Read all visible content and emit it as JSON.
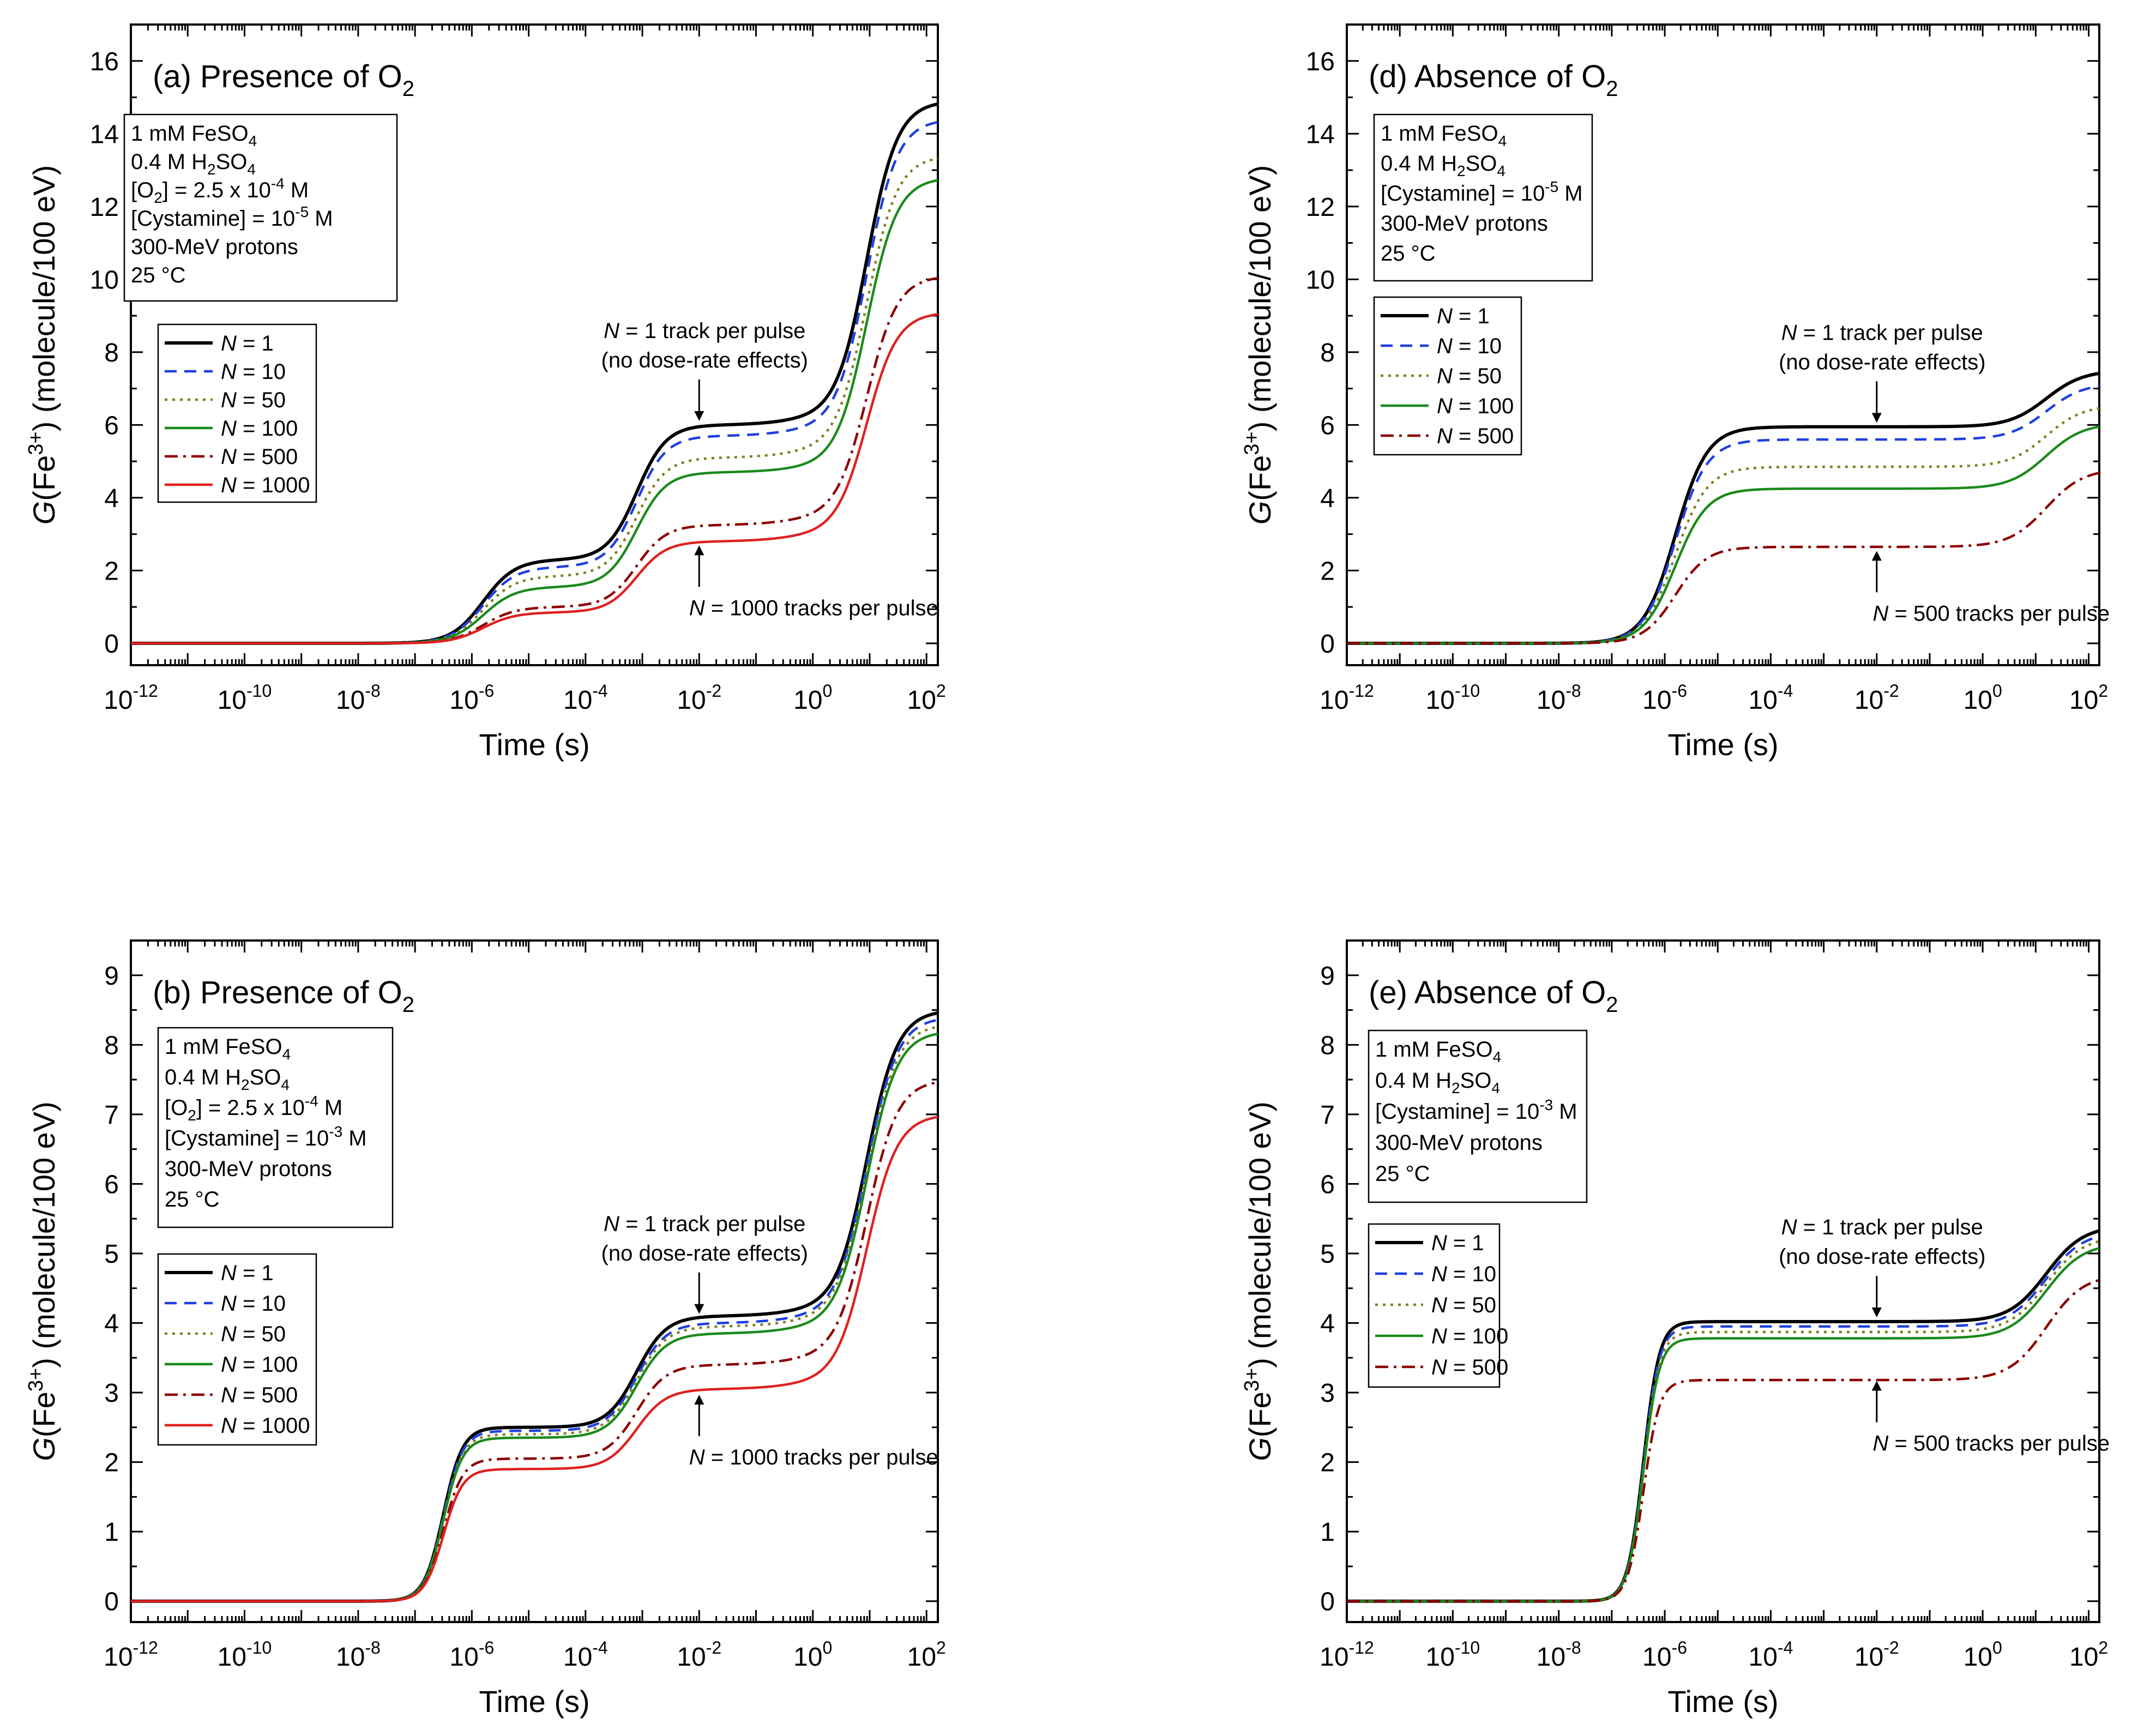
{
  "chart_data": [
    {
      "id": "a",
      "type": "line",
      "title": "(a) Presence of O",
      "title_sub": "2",
      "xlabel": "Time (s)",
      "ylabel": {
        "prefix": "G",
        "mid": "(Fe",
        "sup": "3+",
        "suffix": ") (molecule/100 eV)"
      },
      "x_scale": "log",
      "xlim_exp": [
        -12,
        2.2
      ],
      "ylim": [
        -0.6,
        17
      ],
      "y_ticks": [
        0,
        2,
        4,
        6,
        8,
        10,
        12,
        14,
        16
      ],
      "y_minor_step": 1,
      "x_tick_exps": [
        "-12",
        "-10",
        "-8",
        "-6",
        "-4",
        "-2",
        "0",
        "2"
      ],
      "x_tick_values": [
        -12,
        -10,
        -8,
        -6,
        -4,
        -2,
        0,
        2
      ],
      "info": [
        {
          "parts": [
            {
              "t": "1 mM FeSO"
            },
            {
              "t": "4",
              "sub": true
            }
          ]
        },
        {
          "parts": [
            {
              "t": "0.4 M H"
            },
            {
              "t": "2",
              "sub": true
            },
            {
              "t": "SO"
            },
            {
              "t": "4",
              "sub": true
            }
          ]
        },
        {
          "parts": [
            {
              "t": "[O"
            },
            {
              "t": "2",
              "sub": true
            },
            {
              "t": "] = 2.5 x 10"
            },
            {
              "t": "-4",
              "sup": true
            },
            {
              "t": " M"
            }
          ]
        },
        {
          "parts": [
            {
              "t": "[Cystamine] = 10"
            },
            {
              "t": "-5",
              "sup": true
            },
            {
              "t": " M"
            }
          ]
        },
        {
          "parts": [
            {
              "t": "300-MeV protons"
            }
          ]
        },
        {
          "parts": [
            {
              "t": "25 °C"
            }
          ]
        }
      ],
      "legend": [
        "N = 1",
        "N = 10",
        "N = 50",
        "N = 100",
        "N = 500",
        "N = 1000"
      ],
      "series": [
        {
          "name": "N = 1",
          "color": "#000000",
          "dash": "solid",
          "plateaus": [
            2.3,
            6.0,
            6.2,
            14.9
          ]
        },
        {
          "name": "N = 10",
          "color": "#1f3fe0",
          "dash": "dashed",
          "plateaus": [
            2.1,
            5.7,
            5.9,
            14.4
          ]
        },
        {
          "name": "N = 50",
          "color": "#808020",
          "dash": "dotted",
          "plateaus": [
            1.85,
            5.1,
            5.3,
            13.4
          ]
        },
        {
          "name": "N = 100",
          "color": "#1a8a1a",
          "dash": "solid",
          "plateaus": [
            1.55,
            4.7,
            4.85,
            12.8
          ]
        },
        {
          "name": "N = 500",
          "color": "#8b0000",
          "dash": "dashdot",
          "plateaus": [
            1.0,
            3.25,
            3.45,
            10.1
          ]
        },
        {
          "name": "N = 1000",
          "color": "#e02020",
          "dash": "solid",
          "plateaus": [
            0.85,
            2.8,
            3.0,
            9.1
          ]
        }
      ],
      "annotations": [
        {
          "lines": [
            [
              {
                "t": "N",
                "i": true
              },
              {
                "t": " = 1 track per pulse"
              }
            ],
            [
              {
                "t": "(no dose-rate effects)"
              }
            ]
          ],
          "at_exp": -2,
          "at_y": 6.05,
          "dir": "down"
        },
        {
          "lines": [
            [
              {
                "t": "N",
                "i": true
              },
              {
                "t": " = 1000 tracks per pulse"
              }
            ]
          ],
          "at_exp": -2,
          "at_y": 2.75,
          "dir": "up"
        }
      ]
    },
    {
      "id": "d",
      "type": "line",
      "title": "(d) Absence of O",
      "title_sub": "2",
      "xlabel": "Time (s)",
      "ylabel": {
        "prefix": "G",
        "mid": "(Fe",
        "sup": "3+",
        "suffix": ") (molecule/100 eV)"
      },
      "x_scale": "log",
      "xlim_exp": [
        -12,
        2.2
      ],
      "ylim": [
        -0.6,
        17
      ],
      "y_ticks": [
        0,
        2,
        4,
        6,
        8,
        10,
        12,
        14,
        16
      ],
      "y_minor_step": 1,
      "x_tick_exps": [
        "-12",
        "-10",
        "-8",
        "-6",
        "-4",
        "-2",
        "0",
        "2"
      ],
      "x_tick_values": [
        -12,
        -10,
        -8,
        -6,
        -4,
        -2,
        0,
        2
      ],
      "info": [
        {
          "parts": [
            {
              "t": "1 mM FeSO"
            },
            {
              "t": "4",
              "sub": true
            }
          ]
        },
        {
          "parts": [
            {
              "t": "0.4 M H"
            },
            {
              "t": "2",
              "sub": true
            },
            {
              "t": "SO"
            },
            {
              "t": "4",
              "sub": true
            }
          ]
        },
        {
          "parts": [
            {
              "t": "[Cystamine] = 10"
            },
            {
              "t": "-5",
              "sup": true
            },
            {
              "t": " M"
            }
          ]
        },
        {
          "parts": [
            {
              "t": "300-MeV protons"
            }
          ]
        },
        {
          "parts": [
            {
              "t": "25 °C"
            }
          ]
        }
      ],
      "legend": [
        "N = 1",
        "N = 10",
        "N = 50",
        "N = 100",
        "N = 500"
      ],
      "series": [
        {
          "name": "N = 1",
          "color": "#000000",
          "dash": "solid",
          "plateaus": [
            5.95,
            7.5
          ]
        },
        {
          "name": "N = 10",
          "color": "#1f3fe0",
          "dash": "dashed",
          "plateaus": [
            5.6,
            7.15
          ]
        },
        {
          "name": "N = 50",
          "color": "#808020",
          "dash": "dotted",
          "plateaus": [
            4.85,
            6.55
          ]
        },
        {
          "name": "N = 100",
          "color": "#1a8a1a",
          "dash": "solid",
          "plateaus": [
            4.25,
            6.05
          ]
        },
        {
          "name": "N = 500",
          "color": "#8b0000",
          "dash": "dashdot",
          "plateaus": [
            2.65,
            4.8
          ]
        }
      ],
      "annotations": [
        {
          "lines": [
            [
              {
                "t": "N",
                "i": true
              },
              {
                "t": " = 1 track per pulse"
              }
            ],
            [
              {
                "t": "(no dose-rate effects)"
              }
            ]
          ],
          "at_exp": -2,
          "at_y": 6.0,
          "dir": "down"
        },
        {
          "lines": [
            [
              {
                "t": "N",
                "i": true
              },
              {
                "t": " = 500 tracks per pulse"
              }
            ]
          ],
          "at_exp": -2,
          "at_y": 2.6,
          "dir": "up"
        }
      ]
    },
    {
      "id": "b",
      "type": "line",
      "title": "(b) Presence of O",
      "title_sub": "2",
      "xlabel": "Time (s)",
      "ylabel": {
        "prefix": "G",
        "mid": "(Fe",
        "sup": "3+",
        "suffix": ") (molecule/100 eV)"
      },
      "x_scale": "log",
      "xlim_exp": [
        -12,
        2.2
      ],
      "ylim": [
        -0.3,
        9.5
      ],
      "y_ticks": [
        0,
        1,
        2,
        3,
        4,
        5,
        6,
        7,
        8,
        9
      ],
      "y_minor_step": 0.5,
      "x_tick_exps": [
        "-12",
        "-10",
        "-8",
        "-6",
        "-4",
        "-2",
        "0",
        "2"
      ],
      "x_tick_values": [
        -12,
        -10,
        -8,
        -6,
        -4,
        -2,
        0,
        2
      ],
      "info": [
        {
          "parts": [
            {
              "t": "1 mM FeSO"
            },
            {
              "t": "4",
              "sub": true
            }
          ]
        },
        {
          "parts": [
            {
              "t": "0.4 M H"
            },
            {
              "t": "2",
              "sub": true
            },
            {
              "t": "SO"
            },
            {
              "t": "4",
              "sub": true
            }
          ]
        },
        {
          "parts": [
            {
              "t": "[O"
            },
            {
              "t": "2",
              "sub": true
            },
            {
              "t": "] = 2.5 x 10"
            },
            {
              "t": "-4",
              "sup": true
            },
            {
              "t": " M"
            }
          ]
        },
        {
          "parts": [
            {
              "t": "[Cystamine] = 10"
            },
            {
              "t": "-3",
              "sup": true
            },
            {
              "t": " M"
            }
          ]
        },
        {
          "parts": [
            {
              "t": "300-MeV protons"
            }
          ]
        },
        {
          "parts": [
            {
              "t": "25 °C"
            }
          ]
        }
      ],
      "legend": [
        "N = 1",
        "N = 10",
        "N = 50",
        "N = 100",
        "N = 500",
        "N = 1000"
      ],
      "series": [
        {
          "name": "N = 1",
          "color": "#000000",
          "dash": "solid",
          "plateaus": [
            2.5,
            4.1,
            4.2,
            8.5
          ]
        },
        {
          "name": "N = 10",
          "color": "#1f3fe0",
          "dash": "dashed",
          "plateaus": [
            2.45,
            4.0,
            4.1,
            8.4
          ]
        },
        {
          "name": "N = 50",
          "color": "#808020",
          "dash": "dotted",
          "plateaus": [
            2.4,
            3.95,
            4.05,
            8.3
          ]
        },
        {
          "name": "N = 100",
          "color": "#1a8a1a",
          "dash": "solid",
          "plateaus": [
            2.35,
            3.85,
            3.95,
            8.2
          ]
        },
        {
          "name": "N = 500",
          "color": "#8b0000",
          "dash": "dashdot",
          "plateaus": [
            2.05,
            3.4,
            3.5,
            7.5
          ]
        },
        {
          "name": "N = 1000",
          "color": "#e02020",
          "dash": "solid",
          "plateaus": [
            1.9,
            3.05,
            3.15,
            7.0
          ]
        }
      ],
      "annotations": [
        {
          "lines": [
            [
              {
                "t": "N",
                "i": true
              },
              {
                "t": " = 1 track per pulse"
              }
            ],
            [
              {
                "t": "(no dose-rate effects)"
              }
            ]
          ],
          "at_exp": -2,
          "at_y": 4.1,
          "dir": "down"
        },
        {
          "lines": [
            [
              {
                "t": "N",
                "i": true
              },
              {
                "t": " = 1000 tracks per pulse"
              }
            ]
          ],
          "at_exp": -2,
          "at_y": 3.0,
          "dir": "up"
        }
      ]
    },
    {
      "id": "e",
      "type": "line",
      "title": "(e) Absence of O",
      "title_sub": "2",
      "xlabel": "Time (s)",
      "ylabel": {
        "prefix": "G",
        "mid": "(Fe",
        "sup": "3+",
        "suffix": ") (molecule/100 eV)"
      },
      "x_scale": "log",
      "xlim_exp": [
        -12,
        2.2
      ],
      "ylim": [
        -0.3,
        9.5
      ],
      "y_ticks": [
        0,
        1,
        2,
        3,
        4,
        5,
        6,
        7,
        8,
        9
      ],
      "y_minor_step": 0.5,
      "x_tick_exps": [
        "-12",
        "-10",
        "-8",
        "-6",
        "-4",
        "-2",
        "0",
        "2"
      ],
      "x_tick_values": [
        -12,
        -10,
        -8,
        -6,
        -4,
        -2,
        0,
        2
      ],
      "info": [
        {
          "parts": [
            {
              "t": "1 mM FeSO"
            },
            {
              "t": "4",
              "sub": true
            }
          ]
        },
        {
          "parts": [
            {
              "t": "0.4 M H"
            },
            {
              "t": "2",
              "sub": true
            },
            {
              "t": "SO"
            },
            {
              "t": "4",
              "sub": true
            }
          ]
        },
        {
          "parts": [
            {
              "t": "[Cystamine] = 10"
            },
            {
              "t": "-3",
              "sup": true
            },
            {
              "t": " M"
            }
          ]
        },
        {
          "parts": [
            {
              "t": "300-MeV protons"
            }
          ]
        },
        {
          "parts": [
            {
              "t": "25 °C"
            }
          ]
        }
      ],
      "legend": [
        "N = 1",
        "N = 10",
        "N = 50",
        "N = 100",
        "N = 500"
      ],
      "series": [
        {
          "name": "N = 1",
          "color": "#000000",
          "dash": "solid",
          "plateaus": [
            4.02,
            5.4
          ]
        },
        {
          "name": "N = 10",
          "color": "#1f3fe0",
          "dash": "dashed",
          "plateaus": [
            3.95,
            5.32
          ]
        },
        {
          "name": "N = 50",
          "color": "#808020",
          "dash": "dotted",
          "plateaus": [
            3.87,
            5.25
          ]
        },
        {
          "name": "N = 100",
          "color": "#1a8a1a",
          "dash": "solid",
          "plateaus": [
            3.78,
            5.15
          ]
        },
        {
          "name": "N = 500",
          "color": "#8b0000",
          "dash": "dashdot",
          "plateaus": [
            3.18,
            4.7
          ]
        }
      ],
      "annotations": [
        {
          "lines": [
            [
              {
                "t": "N",
                "i": true
              },
              {
                "t": " = 1 track per pulse"
              }
            ],
            [
              {
                "t": "(no dose-rate effects)"
              }
            ]
          ],
          "at_exp": -2,
          "at_y": 4.05,
          "dir": "down"
        },
        {
          "lines": [
            [
              {
                "t": "N",
                "i": true
              },
              {
                "t": " = 500 tracks per pulse"
              }
            ]
          ],
          "at_exp": -2,
          "at_y": 3.2,
          "dir": "up"
        }
      ]
    }
  ]
}
